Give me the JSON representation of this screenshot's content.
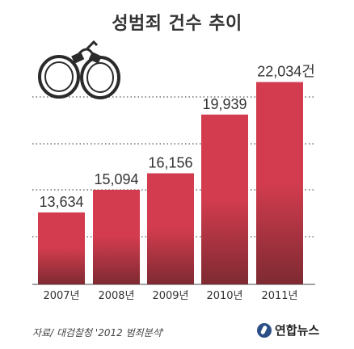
{
  "title": "성범죄 건수 추이",
  "source": "자료/ 대검찰청 '2012 범죄분석'",
  "logo_text": "연합뉴스",
  "icons": {
    "decoration": "handcuffs-icon",
    "logo": "yonhap-logo-icon"
  },
  "colors": {
    "bar_top": "#d23c4e",
    "bar_bottom": "#7e2a32",
    "value_text": "#333333",
    "axis_text": "#333333"
  },
  "chart_data": {
    "type": "bar",
    "title": "성범죄 건수 추이",
    "xlabel": "",
    "ylabel": "",
    "categories": [
      "2007년",
      "2008년",
      "2009년",
      "2010년",
      "2011년"
    ],
    "values": [
      13634,
      15094,
      16156,
      19939,
      22034
    ],
    "value_labels": [
      "13,634",
      "15,094",
      "16,156",
      "19,939",
      "22,034건"
    ],
    "ylim": [
      9000,
      23000
    ],
    "grid": true,
    "legend": "none"
  }
}
